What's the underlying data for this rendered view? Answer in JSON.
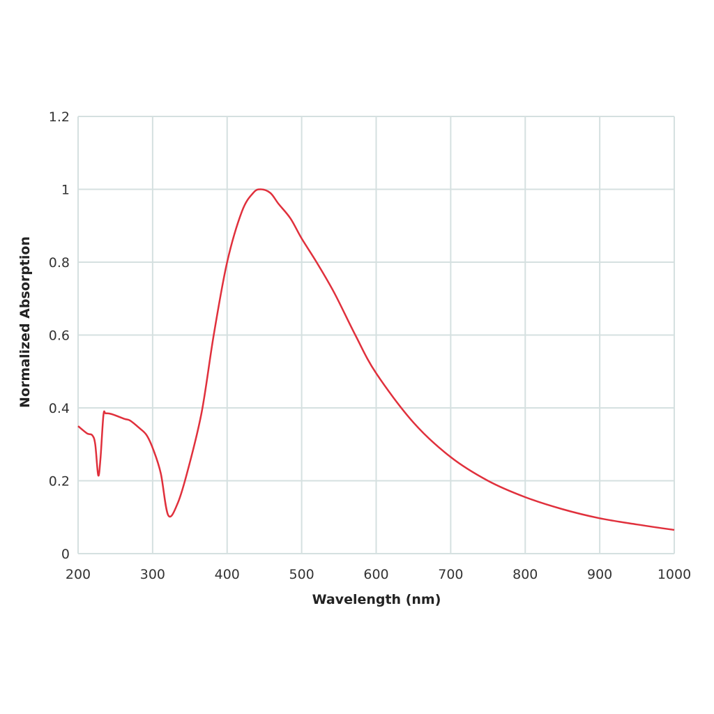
{
  "chart_data": {
    "type": "line",
    "title": "",
    "xlabel": "Wavelength (nm)",
    "ylabel": "Normalized Absorption",
    "xlim": [
      200,
      1000
    ],
    "ylim": [
      0,
      1.2
    ],
    "xticks": [
      "200",
      "300",
      "400",
      "500",
      "600",
      "700",
      "800",
      "900",
      "1000"
    ],
    "yticks": [
      "0",
      "0.2",
      "0.4",
      "0.6",
      "0.8",
      "1",
      "1.2"
    ],
    "grid": true,
    "line_color": "#e0303c",
    "grid_color": "#d5e0e0",
    "series": [
      {
        "x": [
          200,
          212,
          219,
          223,
          227,
          230,
          234,
          237,
          245,
          262,
          270,
          282,
          292,
          301,
          311,
          321,
          334,
          348,
          366,
          382,
          400,
          420,
          435,
          445,
          458,
          469,
          485,
          500,
          520,
          544,
          572,
          600,
          650,
          700,
          750,
          800,
          850,
          900,
          950,
          1000
        ],
        "y": [
          0.35,
          0.33,
          0.325,
          0.3,
          0.215,
          0.26,
          0.38,
          0.385,
          0.383,
          0.37,
          0.365,
          0.345,
          0.325,
          0.285,
          0.22,
          0.105,
          0.14,
          0.235,
          0.39,
          0.6,
          0.8,
          0.94,
          0.99,
          1.0,
          0.99,
          0.96,
          0.92,
          0.865,
          0.8,
          0.715,
          0.6,
          0.495,
          0.36,
          0.265,
          0.2,
          0.155,
          0.122,
          0.097,
          0.08,
          0.065
        ]
      }
    ]
  }
}
